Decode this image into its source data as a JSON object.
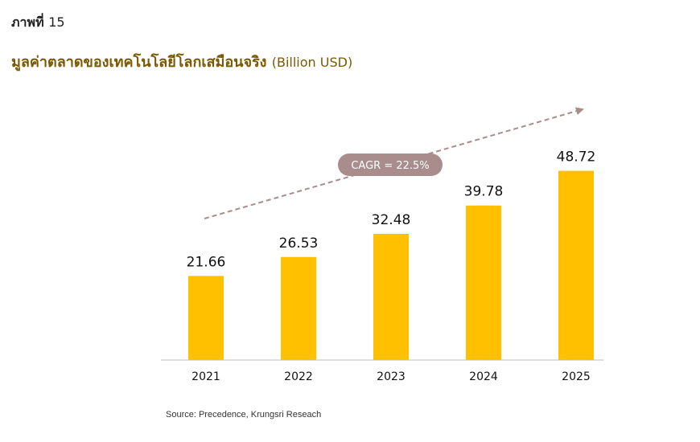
{
  "figure_label": "ภาพที่",
  "figure_number": "15",
  "title": "มูลค่าตลาดของเทคโนโลยีโลกเสมือนจริง",
  "unit": "(Billion USD)",
  "annotation": "CAGR = 22.5%",
  "source": "Source: Precedence, Krungsri Reseach",
  "colors": {
    "bar": "#FFC000",
    "title": "#7a5a00",
    "arrow": "#a98c8c",
    "badge": "#a98c8c"
  },
  "chart_data": {
    "type": "bar",
    "categories": [
      "2021",
      "2022",
      "2023",
      "2024",
      "2025"
    ],
    "values": [
      21.66,
      26.53,
      32.48,
      39.78,
      48.72
    ],
    "data_labels": [
      "21.66",
      "26.53",
      "32.48",
      "39.78",
      "48.72"
    ],
    "ylim": [
      0,
      60
    ],
    "grid": false,
    "legend": "none",
    "annotations": [
      "CAGR = 22.5%"
    ]
  }
}
